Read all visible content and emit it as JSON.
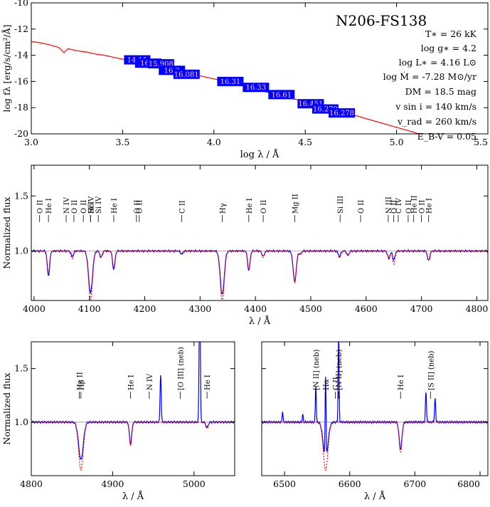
{
  "figure": {
    "sed_title": "N206-FS138",
    "params": [
      "T∗ = 26 kK",
      "log g∗ = 4.2",
      "log L∗ = 4.16 L⊙",
      "log Ṁ = -7.28 M⊙/yr",
      "DM = 18.5 mag",
      "v sin i = 140 km/s",
      "v_rad = 260 km/s",
      "E_B-V = 0.05"
    ],
    "colors": {
      "model": "#ff0000",
      "observed": "#0000ff",
      "photometry_box": "#0000ff",
      "axis": "#000000",
      "continuum": "#999999"
    }
  },
  "chart_data": [
    {
      "type": "line",
      "id": "sed",
      "xlabel": "log λ / Å",
      "ylabel": "log fλ [erg/s/cm²/Å]",
      "xlim": [
        3.0,
        5.5
      ],
      "ylim": [
        -20,
        -10
      ],
      "xticks": [
        3.0,
        3.5,
        4.0,
        4.5,
        5.0,
        5.5
      ],
      "xtick_labels": [
        "3.0",
        "3.5",
        "4.0",
        "4.5",
        "5.0",
        "5.5"
      ],
      "yticks": [
        -20,
        -18,
        -16,
        -14,
        -12,
        -10
      ],
      "ytick_labels": [
        "-20",
        "-18",
        "-16",
        "-14",
        "-12",
        "-10"
      ],
      "series": [
        {
          "x": [
            3.0,
            3.05,
            3.1,
            3.15,
            3.18,
            3.2,
            3.25,
            3.3,
            3.35,
            3.4,
            3.45,
            3.5,
            3.6,
            3.7,
            3.8,
            3.9,
            4.0,
            4.1,
            4.2,
            4.3,
            4.4,
            4.5,
            4.6,
            4.7,
            4.8,
            4.9,
            5.0,
            5.1,
            5.12
          ],
          "y": [
            -12.95,
            -13.05,
            -13.2,
            -13.4,
            -13.8,
            -13.5,
            -13.65,
            -13.75,
            -13.9,
            -14.0,
            -14.15,
            -14.3,
            -14.6,
            -14.9,
            -15.2,
            -15.5,
            -15.8,
            -16.15,
            -16.5,
            -16.85,
            -17.2,
            -17.55,
            -17.9,
            -18.3,
            -18.7,
            -19.1,
            -19.5,
            -19.9,
            -20.0
          ]
        }
      ],
      "photometry": [
        {
          "x": 3.58,
          "y": -14.35,
          "label": "14.11"
        },
        {
          "x": 3.64,
          "y": -14.6,
          "label": "16.1"
        },
        {
          "x": 3.71,
          "y": -14.65,
          "label": "15.908"
        },
        {
          "x": 3.77,
          "y": -15.15,
          "label": "16.2"
        },
        {
          "x": 3.85,
          "y": -15.45,
          "label": "16.081"
        },
        {
          "x": 4.09,
          "y": -16.0,
          "label": "16.31"
        },
        {
          "x": 4.23,
          "y": -16.45,
          "label": "16.33"
        },
        {
          "x": 4.37,
          "y": -17.0,
          "label": "16.61"
        },
        {
          "x": 4.53,
          "y": -17.7,
          "label": "16.451"
        },
        {
          "x": 4.61,
          "y": -18.1,
          "label": "16.279"
        },
        {
          "x": 4.7,
          "y": -18.4,
          "label": "16.278"
        }
      ]
    },
    {
      "type": "line",
      "id": "blue",
      "xlabel": "λ / Å",
      "ylabel": "Normalized flux",
      "xlim": [
        3995,
        4820
      ],
      "ylim": [
        0.55,
        1.78
      ],
      "xticks": [
        4000,
        4100,
        4200,
        4300,
        4400,
        4500,
        4600,
        4700,
        4800
      ],
      "xtick_labels": [
        "4000",
        "4100",
        "4200",
        "4300",
        "4400",
        "4500",
        "4600",
        "4700",
        "4800"
      ],
      "yticks": [
        1.0,
        1.5
      ],
      "ytick_labels": [
        "1.0",
        "1.5"
      ],
      "continuum": 1.0,
      "lines": [
        {
          "wl": 4026,
          "depth_obs": 0.23,
          "depth_mod": 0.2,
          "w": 3
        },
        {
          "wl": 4069,
          "depth_obs": 0.05,
          "depth_mod": 0.07,
          "w": 3
        },
        {
          "wl": 4102,
          "depth_obs": 0.38,
          "depth_mod": 0.44,
          "w": 5
        },
        {
          "wl": 4121,
          "depth_obs": 0.06,
          "depth_mod": 0.05,
          "w": 3
        },
        {
          "wl": 4144,
          "depth_obs": 0.17,
          "depth_mod": 0.15,
          "w": 3
        },
        {
          "wl": 4267,
          "depth_obs": 0.03,
          "depth_mod": 0.02,
          "w": 3
        },
        {
          "wl": 4340,
          "depth_obs": 0.4,
          "depth_mod": 0.46,
          "w": 5
        },
        {
          "wl": 4388,
          "depth_obs": 0.18,
          "depth_mod": 0.17,
          "w": 3
        },
        {
          "wl": 4414,
          "depth_obs": 0.05,
          "depth_mod": 0.06,
          "w": 3
        },
        {
          "wl": 4471,
          "depth_obs": 0.28,
          "depth_mod": 0.28,
          "w": 4
        },
        {
          "wl": 4481,
          "depth_obs": 0.03,
          "depth_mod": 0.03,
          "w": 3
        },
        {
          "wl": 4552,
          "depth_obs": 0.05,
          "depth_mod": 0.06,
          "w": 3
        },
        {
          "wl": 4567,
          "depth_obs": 0.04,
          "depth_mod": 0.04,
          "w": 3
        },
        {
          "wl": 4641,
          "depth_obs": 0.07,
          "depth_mod": 0.06,
          "w": 3
        },
        {
          "wl": 4650,
          "depth_obs": 0.08,
          "depth_mod": 0.12,
          "w": 3
        },
        {
          "wl": 4713,
          "depth_obs": 0.09,
          "depth_mod": 0.08,
          "w": 3
        }
      ],
      "labels": [
        {
          "wl": 4010,
          "text": "O II"
        },
        {
          "wl": 4026,
          "text": "He I"
        },
        {
          "wl": 4058,
          "text": "N IV"
        },
        {
          "wl": 4072,
          "text": "O II"
        },
        {
          "wl": 4089,
          "text": "O II"
        },
        {
          "wl": 4102,
          "text": "Si IV"
        },
        {
          "wl": 4102,
          "text": "Hδ"
        },
        {
          "wl": 4116,
          "text": "Si IV"
        },
        {
          "wl": 4144,
          "text": "He I"
        },
        {
          "wl": 4185,
          "text": "O II"
        },
        {
          "wl": 4190,
          "text": "O II"
        },
        {
          "wl": 4267,
          "text": "C II"
        },
        {
          "wl": 4340,
          "text": "Hγ"
        },
        {
          "wl": 4388,
          "text": "He I"
        },
        {
          "wl": 4414,
          "text": "O II"
        },
        {
          "wl": 4471,
          "text": "Mg II"
        },
        {
          "wl": 4553,
          "text": "Si III"
        },
        {
          "wl": 4590,
          "text": "O II"
        },
        {
          "wl": 4640,
          "text": "N III"
        },
        {
          "wl": 4650,
          "text": "O II"
        },
        {
          "wl": 4658,
          "text": "C IV"
        },
        {
          "wl": 4676,
          "text": "O II"
        },
        {
          "wl": 4686,
          "text": "He II"
        },
        {
          "wl": 4700,
          "text": "O II"
        },
        {
          "wl": 4713,
          "text": "He I"
        }
      ]
    },
    {
      "type": "line",
      "id": "hbeta",
      "xlabel": "λ / Å",
      "ylabel": "Normalized flux",
      "xlim": [
        4800,
        5050
      ],
      "ylim": [
        0.5,
        1.75
      ],
      "xticks": [
        4800,
        4900,
        5000
      ],
      "xtick_labels": [
        "4800",
        "4900",
        "5000"
      ],
      "yticks": [
        1.0,
        1.5
      ],
      "ytick_labels": [
        "1.0",
        "1.5"
      ],
      "continuum": 1.0,
      "lines": [
        {
          "wl": 4861,
          "depth_obs": 0.35,
          "depth_mod": 0.45,
          "w": 4
        },
        {
          "wl": 4922,
          "depth_obs": 0.2,
          "depth_mod": 0.22,
          "w": 2
        },
        {
          "wl": 5016,
          "depth_obs": 0.05,
          "depth_mod": 0.06,
          "w": 2
        }
      ],
      "emission": [
        {
          "wl": 4959,
          "h": 0.45,
          "w": 1
        },
        {
          "wl": 5007,
          "h": 1.3,
          "w": 1
        }
      ],
      "labels": [
        {
          "wl": 4859,
          "text": "He II"
        },
        {
          "wl": 4861,
          "text": "Hβ"
        },
        {
          "wl": 4922,
          "text": "He I"
        },
        {
          "wl": 4945,
          "text": "N IV"
        },
        {
          "wl": 4983,
          "text": "[O III] (neb)"
        },
        {
          "wl": 5016,
          "text": "He I"
        }
      ]
    },
    {
      "type": "line",
      "id": "halpha",
      "xlabel": "λ / Å",
      "ylabel": "",
      "xlim": [
        6465,
        6812
      ],
      "ylim": [
        0.5,
        1.75
      ],
      "xticks": [
        6500,
        6600,
        6700,
        6800
      ],
      "xtick_labels": [
        "6500",
        "6600",
        "6700",
        "6800"
      ],
      "yticks": [
        1.0,
        1.5
      ],
      "ytick_labels": [
        "",
        ""
      ],
      "continuum": 1.0,
      "lines": [
        {
          "wl": 6563,
          "depth_obs": 0.35,
          "depth_mod": 0.45,
          "w": 5
        },
        {
          "wl": 6678,
          "depth_obs": 0.25,
          "depth_mod": 0.28,
          "w": 3
        }
      ],
      "emission": [
        {
          "wl": 6548,
          "h": 0.35,
          "w": 1
        },
        {
          "wl": 6563,
          "h": 0.8,
          "w": 1
        },
        {
          "wl": 6583,
          "h": 0.85,
          "w": 1
        },
        {
          "wl": 6717,
          "h": 0.28,
          "w": 1.2
        },
        {
          "wl": 6731,
          "h": 0.22,
          "w": 1.2
        },
        {
          "wl": 6497,
          "h": 0.1,
          "w": 1
        },
        {
          "wl": 6528,
          "h": 0.07,
          "w": 1
        }
      ],
      "labels": [
        {
          "wl": 6548,
          "text": "[N II] (neb)"
        },
        {
          "wl": 6563,
          "text": "Hα"
        },
        {
          "wl": 6578,
          "text": "C II"
        },
        {
          "wl": 6583,
          "text": "[N II] (neb)"
        },
        {
          "wl": 6678,
          "text": "He I"
        },
        {
          "wl": 6724,
          "text": "[S II] (neb)"
        }
      ]
    }
  ]
}
